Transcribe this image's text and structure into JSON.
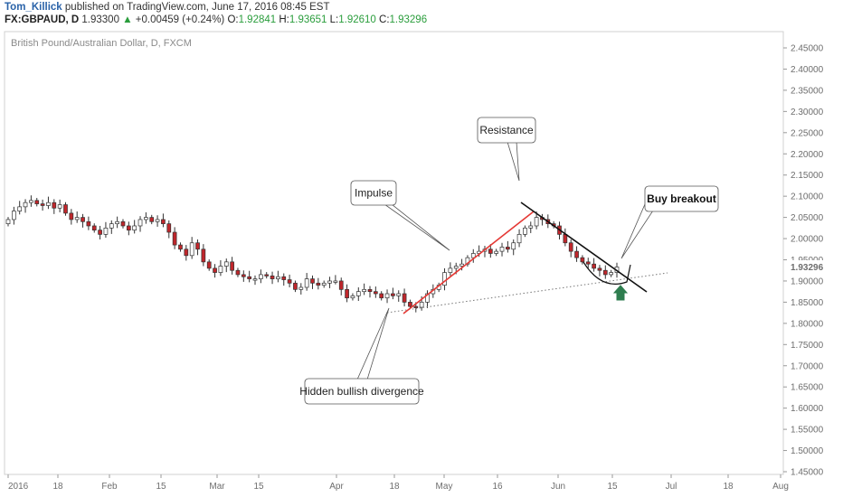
{
  "header": {
    "author": "Tom_Killick",
    "published": "published on TradingView.com, June 17, 2016 08:45 EST",
    "symbol": "FX:GBPAUD, D",
    "price": "1.93300",
    "change": "+0.00459 (+0.24%)",
    "o_label": "O:",
    "o_value": "1.92841",
    "h_label": "H:",
    "h_value": "1.93651",
    "l_label": "L:",
    "l_value": "1.92610",
    "c_label": "C:",
    "c_value": "1.93296",
    "up_arrow": "▲"
  },
  "chart_data": {
    "type": "candlestick",
    "title": "British Pound/Australian Dollar, D, FXCM",
    "ylim": [
      1.43,
      2.48
    ],
    "y_ticks": [
      "2.45000",
      "2.40000",
      "2.35000",
      "2.30000",
      "2.25000",
      "2.20000",
      "2.15000",
      "2.10000",
      "2.05000",
      "2.00000",
      "1.95000",
      "1.90000",
      "1.85000",
      "1.80000",
      "1.75000",
      "1.70000",
      "1.65000",
      "1.60000",
      "1.55000",
      "1.50000",
      "1.45000"
    ],
    "x_ticks": [
      "2016",
      "18",
      "Feb",
      "15",
      "Mar",
      "15",
      "Apr",
      "18",
      "May",
      "16",
      "Jun",
      "15",
      "Jul",
      "18",
      "Aug"
    ],
    "last_price_label": "1.93296",
    "close_series": [
      2.045,
      2.065,
      2.075,
      2.085,
      2.09,
      2.082,
      2.078,
      2.085,
      2.072,
      2.08,
      2.06,
      2.045,
      2.05,
      2.04,
      2.03,
      2.02,
      2.01,
      2.025,
      2.035,
      2.04,
      2.03,
      2.02,
      2.03,
      2.045,
      2.05,
      2.04,
      2.045,
      2.035,
      2.015,
      1.985,
      1.975,
      1.96,
      1.99,
      1.975,
      1.945,
      1.93,
      1.92,
      1.935,
      1.945,
      1.925,
      1.915,
      1.91,
      1.905,
      1.905,
      1.915,
      1.912,
      1.905,
      1.91,
      1.903,
      1.895,
      1.88,
      1.885,
      1.905,
      1.895,
      1.89,
      1.895,
      1.9,
      1.9,
      1.88,
      1.86,
      1.865,
      1.875,
      1.88,
      1.875,
      1.87,
      1.86,
      1.87,
      1.865,
      1.87,
      1.85,
      1.84,
      1.838,
      1.85,
      1.87,
      1.88,
      1.89,
      1.92,
      1.93,
      1.935,
      1.94,
      1.955,
      1.965,
      1.97,
      1.975,
      1.965,
      1.97,
      1.98,
      1.975,
      1.99,
      2.01,
      2.025,
      2.03,
      2.05,
      2.045,
      2.035,
      2.03,
      2.01,
      1.99,
      1.97,
      1.955,
      1.945,
      1.94,
      1.93,
      1.925,
      1.915,
      1.92,
      1.933
    ],
    "annotations": {
      "impulse": "Impulse",
      "resistance": "Resistance",
      "buy_breakout": "Buy breakout",
      "hidden_divergence": "Hidden bullish divergence"
    },
    "colors": {
      "up": "#ffffff",
      "down": "#c0262b",
      "wick": "#333333",
      "impulse_line": "#e53935",
      "resistance_line": "#111111",
      "arrow": "#2e7d4f"
    },
    "grid": false,
    "legend": "none"
  }
}
